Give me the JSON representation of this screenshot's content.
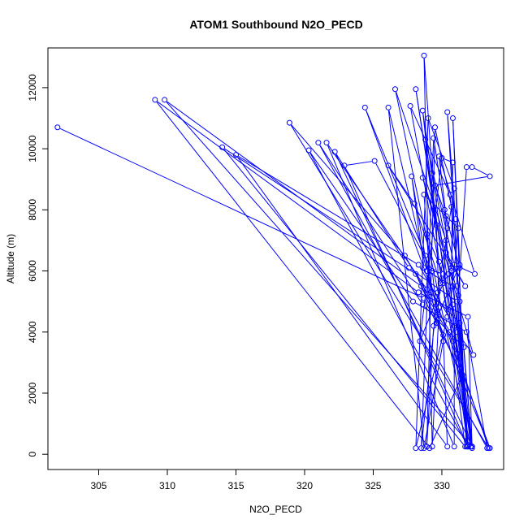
{
  "chart_data": {
    "type": "line",
    "title": "ATOM1 Southbound N2O_PECD",
    "xlabel": "N2O_PECD",
    "ylabel": "Altitude (m)",
    "xlim": [
      301.3,
      334.5
    ],
    "ylim": [
      -500,
      13300
    ],
    "xticks": [
      305,
      310,
      315,
      320,
      325,
      330
    ],
    "yticks": [
      0,
      2000,
      4000,
      6000,
      8000,
      10000,
      12000
    ],
    "grid": false,
    "legend": "none",
    "series": [
      {
        "color": "#0000ff",
        "markers": "open-circle",
        "points": [
          [
            302,
            10700
          ],
          [
            328.7,
            5100
          ],
          [
            331.5,
            2600
          ],
          [
            329.1,
            200
          ],
          [
            309.1,
            11600
          ],
          [
            328.3,
            5300
          ],
          [
            331.9,
            4500
          ],
          [
            332.2,
            250
          ],
          [
            309.8,
            11600
          ],
          [
            328.5,
            5500
          ],
          [
            330.8,
            3700
          ],
          [
            333.4,
            200
          ],
          [
            318.9,
            10850
          ],
          [
            327.3,
            6500
          ],
          [
            330.6,
            4000
          ],
          [
            331.7,
            250
          ],
          [
            314,
            10050
          ],
          [
            328.1,
            5900
          ],
          [
            330.1,
            3900
          ],
          [
            330.4,
            250
          ],
          [
            315,
            9800
          ],
          [
            328.3,
            6200
          ],
          [
            330.9,
            4200
          ],
          [
            330.9,
            250
          ],
          [
            321.6,
            10200
          ],
          [
            328.9,
            5400
          ],
          [
            331.3,
            4300
          ],
          [
            331.9,
            250
          ],
          [
            320.3,
            9950
          ],
          [
            327.9,
            5000
          ],
          [
            331.8,
            4000
          ],
          [
            333.3,
            200
          ],
          [
            321,
            10200
          ],
          [
            328.6,
            4900
          ],
          [
            331.6,
            3500
          ],
          [
            332.2,
            250
          ],
          [
            322.2,
            9900
          ],
          [
            327.6,
            6100
          ],
          [
            331.1,
            5000
          ],
          [
            331.9,
            250
          ],
          [
            322.9,
            9450
          ],
          [
            325.1,
            9600
          ],
          [
            329.3,
            6000
          ],
          [
            329.7,
            4400
          ],
          [
            333.5,
            200
          ],
          [
            324.4,
            11350
          ],
          [
            328.8,
            6500
          ],
          [
            330.1,
            3700
          ],
          [
            328.7,
            200
          ],
          [
            326.1,
            11350
          ],
          [
            328.9,
            6000
          ],
          [
            330.8,
            5500
          ],
          [
            332.1,
            250
          ],
          [
            326.6,
            11950
          ],
          [
            330.3,
            7000
          ],
          [
            331.1,
            3300
          ],
          [
            332.2,
            250
          ],
          [
            327.7,
            11400
          ],
          [
            330.6,
            8500
          ],
          [
            331.3,
            5000
          ],
          [
            332.2,
            200
          ],
          [
            328.1,
            11950
          ],
          [
            329.6,
            7500
          ],
          [
            329.8,
            4800
          ],
          [
            329.3,
            250
          ],
          [
            328.7,
            13050
          ],
          [
            329.3,
            9200
          ],
          [
            330.7,
            6000
          ],
          [
            332.2,
            250
          ],
          [
            328.6,
            11250
          ],
          [
            329.8,
            6300
          ],
          [
            330.4,
            4500
          ],
          [
            328.1,
            200
          ],
          [
            329,
            11000
          ],
          [
            330.9,
            8700
          ],
          [
            330.7,
            6100
          ],
          [
            331.9,
            300
          ],
          [
            330.4,
            11200
          ],
          [
            331,
            7700
          ],
          [
            331.1,
            5500
          ],
          [
            331.8,
            250
          ],
          [
            330.8,
            11000
          ],
          [
            331.3,
            6200
          ],
          [
            329.4,
            4200
          ],
          [
            328.9,
            250
          ],
          [
            329.5,
            10700
          ],
          [
            330.7,
            8100
          ],
          [
            329.7,
            5300
          ],
          [
            328.5,
            200
          ],
          [
            329.4,
            10350
          ],
          [
            330.2,
            8000
          ],
          [
            330.5,
            5900
          ],
          [
            331.9,
            250
          ],
          [
            328.8,
            10300
          ],
          [
            330.9,
            6200
          ],
          [
            332.4,
            5900
          ],
          [
            329.8,
            9750
          ],
          [
            330.4,
            7400
          ],
          [
            330.1,
            5600
          ],
          [
            328.4,
            3700
          ],
          [
            330,
            9700
          ],
          [
            330.8,
            9550
          ],
          [
            330.7,
            6000
          ],
          [
            331.2,
            5200
          ],
          [
            331.8,
            9400
          ],
          [
            332.2,
            9400
          ],
          [
            333.5,
            9100
          ],
          [
            329.5,
            8800
          ],
          [
            330.3,
            7800
          ],
          [
            331.3,
            6100
          ],
          [
            330.1,
            5700
          ],
          [
            330.8,
            4900
          ],
          [
            331.1,
            4000
          ],
          [
            332.3,
            3250
          ],
          [
            328.6,
            9050
          ],
          [
            330.3,
            6600
          ],
          [
            331.7,
            5500
          ],
          [
            326.1,
            9450
          ],
          [
            328,
            8200
          ],
          [
            329.9,
            5600
          ],
          [
            329.6,
            4300
          ],
          [
            327.8,
            9100
          ],
          [
            328.7,
            6100
          ],
          [
            330.1,
            5900
          ],
          [
            328.9,
            7200
          ],
          [
            329.2,
            5300
          ],
          [
            328.7,
            8500
          ],
          [
            331.2,
            7400
          ],
          [
            330.6,
            4800
          ]
        ]
      }
    ]
  }
}
